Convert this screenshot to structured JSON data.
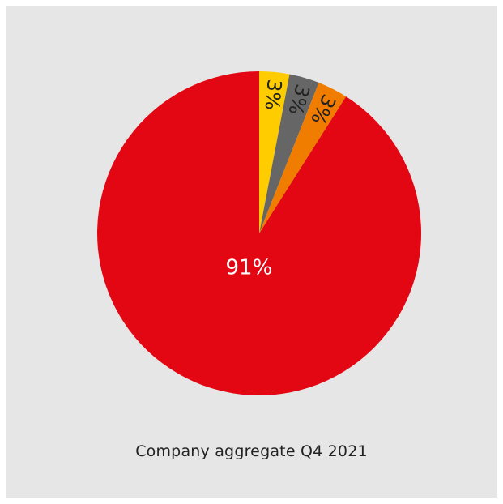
{
  "chart_data": {
    "type": "pie",
    "title": "",
    "caption": "Company aggregate Q4 2021",
    "slices": [
      {
        "label": "3%",
        "value": 3,
        "color": "#ffcc00"
      },
      {
        "label": "3%",
        "value": 3,
        "color": "#666666"
      },
      {
        "label": "3%",
        "value": 3,
        "color": "#f07d00"
      },
      {
        "label": "91%",
        "value": 91,
        "color": "#e30613"
      }
    ],
    "start_angle": "12 o'clock",
    "direction": "clockwise",
    "colors": {
      "background": "#e6e6e6",
      "label_dark": "#222222",
      "label_light": "#ffffff"
    }
  }
}
